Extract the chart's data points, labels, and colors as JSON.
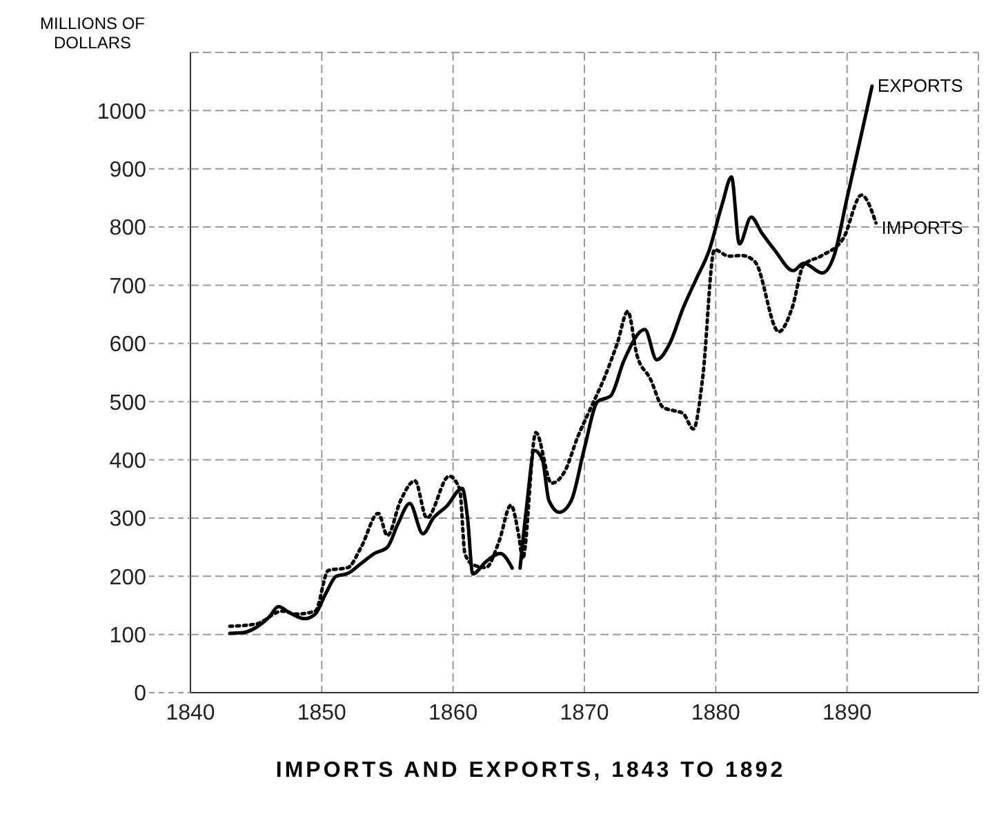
{
  "chart_data": {
    "type": "line",
    "title": "IMPORTS AND EXPORTS, 1843 TO 1892",
    "ylabel": "MILLIONS OF DOLLARS",
    "xlim": [
      1840,
      1900
    ],
    "xticks": [
      1840,
      1850,
      1860,
      1870,
      1880,
      1890
    ],
    "ylim": [
      0,
      1100
    ],
    "yticks": [
      0,
      100,
      200,
      300,
      400,
      500,
      600,
      700,
      800,
      900,
      1000
    ],
    "grid": true,
    "marker": "none",
    "series": [
      {
        "name": "EXPORTS",
        "color": "#000000",
        "line_style": "solid",
        "x": [
          1843,
          1844,
          1845,
          1846,
          1846.7,
          1847.5,
          1848.7,
          1849.5,
          1850.3,
          1851.1,
          1852,
          1853,
          1854,
          1855,
          1855.8,
          1856.7,
          1857.7,
          1858.5,
          1859.5,
          1860.7,
          1861.1,
          1861.5,
          1862.5,
          1863.6,
          1864.5,
          1864.8,
          1865.1,
          1865.6,
          1866.2,
          1866.8,
          1867.3,
          1868.1,
          1869,
          1870,
          1871,
          1872,
          1873,
          1874.6,
          1875.5,
          1876.5,
          1877.5,
          1878.5,
          1879.5,
          1880.5,
          1881.2,
          1881.8,
          1882.7,
          1883.5,
          1884.5,
          1885.9,
          1886.7,
          1888.1,
          1889,
          1890,
          1891,
          1891.9
        ],
        "values": [
          102,
          103,
          112,
          130,
          148,
          138,
          127,
          135,
          170,
          200,
          205,
          222,
          239,
          250,
          290,
          325,
          273,
          300,
          320,
          351,
          300,
          204,
          225,
          239,
          214,
          null,
          214,
          320,
          416,
          400,
          330,
          310,
          330,
          420,
          500,
          510,
          570,
          624,
          572,
          600,
          660,
          710,
          760,
          840,
          886,
          771,
          817,
          790,
          760,
          725,
          738,
          721,
          750,
          850,
          950,
          1042
        ]
      },
      {
        "name": "IMPORTS",
        "color": "#000000",
        "line_style": "dotted",
        "x": [
          1843,
          1845,
          1847,
          1848,
          1849.5,
          1850.5,
          1852,
          1853,
          1854.3,
          1855,
          1856,
          1857.1,
          1858,
          1859.7,
          1860.5,
          1860.9,
          1861.5,
          1862.5,
          1863.5,
          1864.4,
          1865,
          1865.3,
          1866.3,
          1867.5,
          1868.5,
          1869.5,
          1870.5,
          1871.5,
          1872.5,
          1873.3,
          1874,
          1875,
          1876,
          1876.9,
          1877.5,
          1878.3,
          1879,
          1879.9,
          1881,
          1882,
          1883,
          1884.8,
          1885.8,
          1886.7,
          1888,
          1889.7,
          1891.1,
          1892.2
        ],
        "values": [
          114,
          118,
          140,
          135,
          140,
          210,
          215,
          250,
          308,
          270,
          330,
          364,
          300,
          372,
          350,
          239,
          220,
          215,
          260,
          322,
          270,
          230,
          447,
          360,
          380,
          440,
          490,
          540,
          600,
          655,
          580,
          540,
          490,
          484,
          480,
          453,
          540,
          761,
          750,
          751,
          740,
          620,
          660,
          735,
          750,
          780,
          855,
          807
        ]
      }
    ]
  }
}
